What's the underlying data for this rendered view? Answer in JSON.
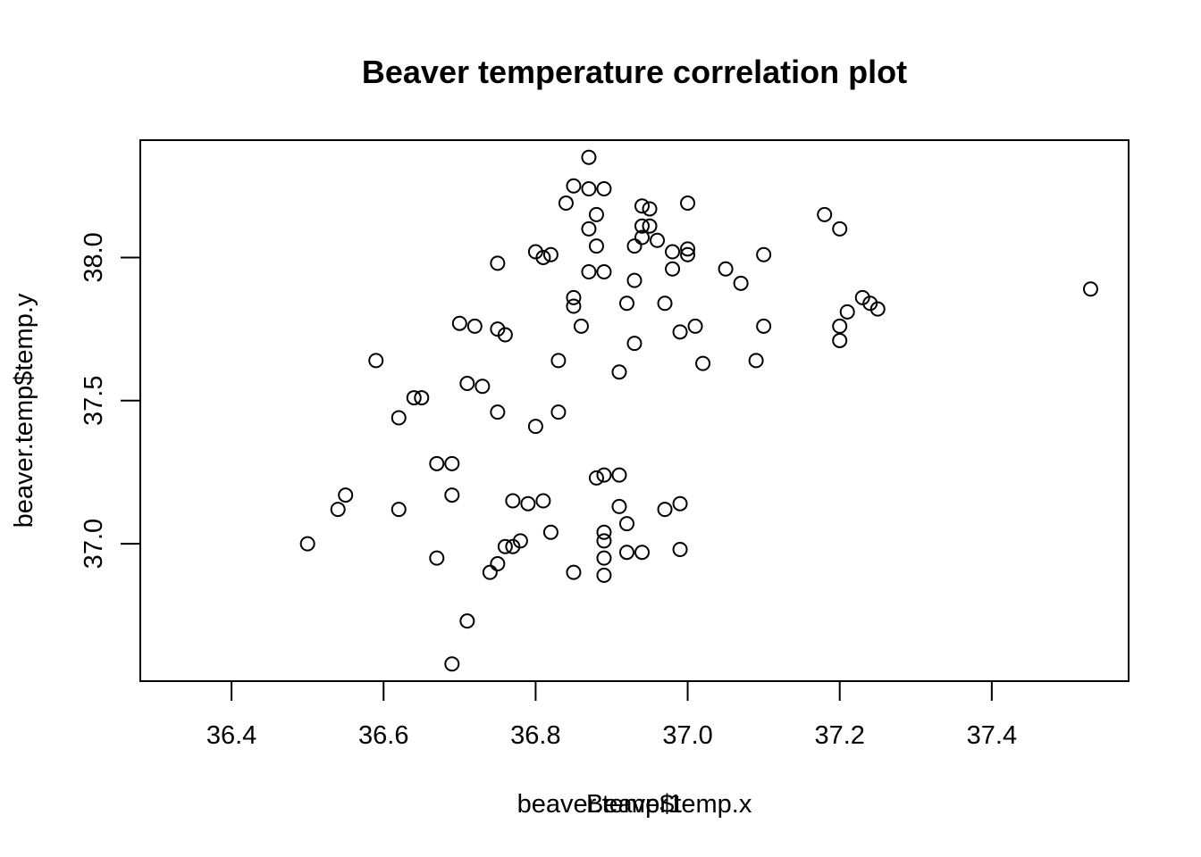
{
  "chart_data": {
    "type": "scatter",
    "title": "Beaver temperature correlation plot",
    "xlabel": "beaver.temp$temp.x",
    "xlabel_overlay": "Beaver1",
    "ylabel": "beaver.temp$temp.y",
    "xlim": [
      36.28,
      37.58
    ],
    "ylim": [
      36.52,
      38.41
    ],
    "x_ticks": [
      36.4,
      36.6,
      36.8,
      37.0,
      37.2,
      37.4
    ],
    "x_tick_labels": [
      "36.4",
      "36.6",
      "36.8",
      "37.0",
      "37.2",
      "37.4"
    ],
    "y_ticks": [
      37.0,
      37.5,
      38.0
    ],
    "y_tick_labels": [
      "37.0",
      "37.5",
      "38.0"
    ],
    "grid": false,
    "marker": "open-circle",
    "points": [
      [
        36.87,
        38.35
      ],
      [
        36.85,
        38.25
      ],
      [
        36.87,
        38.24
      ],
      [
        36.89,
        38.24
      ],
      [
        36.84,
        38.19
      ],
      [
        37.0,
        38.19
      ],
      [
        36.94,
        38.18
      ],
      [
        36.95,
        38.17
      ],
      [
        36.88,
        38.15
      ],
      [
        37.18,
        38.15
      ],
      [
        36.94,
        38.11
      ],
      [
        36.95,
        38.11
      ],
      [
        36.87,
        38.1
      ],
      [
        37.2,
        38.1
      ],
      [
        36.94,
        38.07
      ],
      [
        36.96,
        38.06
      ],
      [
        36.88,
        38.04
      ],
      [
        36.93,
        38.04
      ],
      [
        37.0,
        38.03
      ],
      [
        36.8,
        38.02
      ],
      [
        36.98,
        38.02
      ],
      [
        36.82,
        38.01
      ],
      [
        37.0,
        38.01
      ],
      [
        37.1,
        38.01
      ],
      [
        36.81,
        38.0
      ],
      [
        36.75,
        37.98
      ],
      [
        36.98,
        37.96
      ],
      [
        37.05,
        37.96
      ],
      [
        36.87,
        37.95
      ],
      [
        36.89,
        37.95
      ],
      [
        36.93,
        37.92
      ],
      [
        37.07,
        37.91
      ],
      [
        37.53,
        37.89
      ],
      [
        36.85,
        37.86
      ],
      [
        37.23,
        37.86
      ],
      [
        36.92,
        37.84
      ],
      [
        36.97,
        37.84
      ],
      [
        37.24,
        37.84
      ],
      [
        36.85,
        37.83
      ],
      [
        37.25,
        37.82
      ],
      [
        37.21,
        37.81
      ],
      [
        36.7,
        37.77
      ],
      [
        36.72,
        37.76
      ],
      [
        36.86,
        37.76
      ],
      [
        37.01,
        37.76
      ],
      [
        37.1,
        37.76
      ],
      [
        37.2,
        37.76
      ],
      [
        36.75,
        37.75
      ],
      [
        36.99,
        37.74
      ],
      [
        36.76,
        37.73
      ],
      [
        37.2,
        37.71
      ],
      [
        36.93,
        37.7
      ],
      [
        36.59,
        37.64
      ],
      [
        36.83,
        37.64
      ],
      [
        37.09,
        37.64
      ],
      [
        37.02,
        37.63
      ],
      [
        36.91,
        37.6
      ],
      [
        36.71,
        37.56
      ],
      [
        36.73,
        37.55
      ],
      [
        36.64,
        37.51
      ],
      [
        36.65,
        37.51
      ],
      [
        36.75,
        37.46
      ],
      [
        36.83,
        37.46
      ],
      [
        36.62,
        37.44
      ],
      [
        36.8,
        37.41
      ],
      [
        36.67,
        37.28
      ],
      [
        36.69,
        37.28
      ],
      [
        36.89,
        37.24
      ],
      [
        36.91,
        37.24
      ],
      [
        36.88,
        37.23
      ],
      [
        36.55,
        37.17
      ],
      [
        36.69,
        37.17
      ],
      [
        36.77,
        37.15
      ],
      [
        36.81,
        37.15
      ],
      [
        36.79,
        37.14
      ],
      [
        36.99,
        37.14
      ],
      [
        36.91,
        37.13
      ],
      [
        36.54,
        37.12
      ],
      [
        36.62,
        37.12
      ],
      [
        36.97,
        37.12
      ],
      [
        36.92,
        37.07
      ],
      [
        36.82,
        37.04
      ],
      [
        36.89,
        37.04
      ],
      [
        36.78,
        37.01
      ],
      [
        36.89,
        37.01
      ],
      [
        36.5,
        37.0
      ],
      [
        36.76,
        36.99
      ],
      [
        36.77,
        36.99
      ],
      [
        36.99,
        36.98
      ],
      [
        36.92,
        36.97
      ],
      [
        36.94,
        36.97
      ],
      [
        36.67,
        36.95
      ],
      [
        36.89,
        36.95
      ],
      [
        36.75,
        36.93
      ],
      [
        36.74,
        36.9
      ],
      [
        36.85,
        36.9
      ],
      [
        36.89,
        36.89
      ],
      [
        36.71,
        36.73
      ],
      [
        36.69,
        36.58
      ]
    ]
  }
}
